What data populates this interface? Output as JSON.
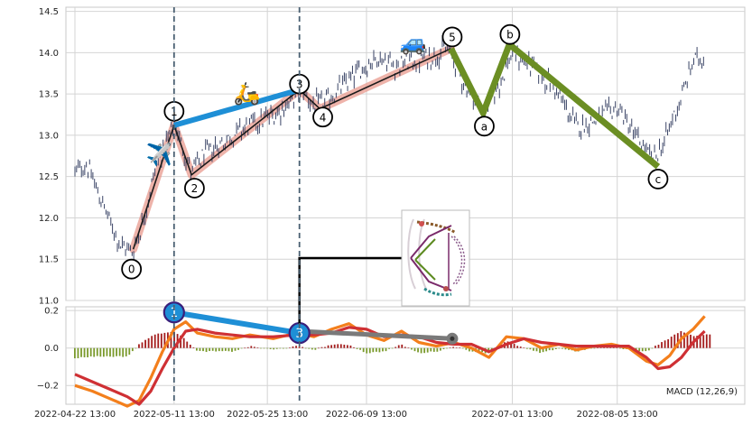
{
  "colors": {
    "grid": "#d4d4d4",
    "candle": "#3a4466",
    "impulse": "#e8998d",
    "abc": "#6b8e23",
    "divergence": "#1e8fd6",
    "macd_line": "#f37f1c",
    "signal_line": "#cf3034",
    "hist_pos": "#a31c1c",
    "hist_neg": "#7a9a2c",
    "vline": "#4a6072",
    "grey_line": "#7a7a7a"
  },
  "chart_data": [
    {
      "type": "candlestick",
      "title": "",
      "ylim": [
        11.0,
        14.55
      ],
      "yticks": [
        "11.0",
        "11.5",
        "12.0",
        "12.5",
        "13.0",
        "13.5",
        "14.0",
        "14.5"
      ],
      "xlim_days": [
        0,
        111
      ],
      "price_path": [
        {
          "d": 0,
          "v": 12.55
        },
        {
          "d": 2,
          "v": 12.65
        },
        {
          "d": 4,
          "v": 12.3
        },
        {
          "d": 6,
          "v": 11.95
        },
        {
          "d": 8,
          "v": 11.65
        },
        {
          "d": 10,
          "v": 11.6
        },
        {
          "d": 12,
          "v": 12.05
        },
        {
          "d": 14,
          "v": 12.65
        },
        {
          "d": 16,
          "v": 12.95
        },
        {
          "d": 17,
          "v": 13.13
        },
        {
          "d": 18.5,
          "v": 12.85
        },
        {
          "d": 20,
          "v": 12.55
        },
        {
          "d": 22,
          "v": 12.75
        },
        {
          "d": 25,
          "v": 12.9
        },
        {
          "d": 28,
          "v": 13.05
        },
        {
          "d": 31,
          "v": 13.15
        },
        {
          "d": 34,
          "v": 13.25
        },
        {
          "d": 37,
          "v": 13.4
        },
        {
          "d": 39,
          "v": 13.55
        },
        {
          "d": 41,
          "v": 13.35
        },
        {
          "d": 43,
          "v": 13.4
        },
        {
          "d": 46,
          "v": 13.6
        },
        {
          "d": 49,
          "v": 13.8
        },
        {
          "d": 52,
          "v": 13.95
        },
        {
          "d": 55,
          "v": 13.85
        },
        {
          "d": 58,
          "v": 13.9
        },
        {
          "d": 61,
          "v": 13.95
        },
        {
          "d": 64,
          "v": 14.05
        },
        {
          "d": 67,
          "v": 13.6
        },
        {
          "d": 70,
          "v": 13.3
        },
        {
          "d": 72,
          "v": 13.5
        },
        {
          "d": 75,
          "v": 14.0
        },
        {
          "d": 78,
          "v": 13.85
        },
        {
          "d": 82,
          "v": 13.6
        },
        {
          "d": 86,
          "v": 13.1
        },
        {
          "d": 90,
          "v": 13.2
        },
        {
          "d": 93,
          "v": 13.35
        },
        {
          "d": 96,
          "v": 13.0
        },
        {
          "d": 99,
          "v": 12.7
        },
        {
          "d": 101,
          "v": 12.9
        },
        {
          "d": 103,
          "v": 13.3
        },
        {
          "d": 104,
          "v": 13.45
        },
        {
          "d": 106,
          "v": 13.9
        },
        {
          "d": 108,
          "v": 13.95
        }
      ],
      "wave_points": [
        {
          "label": "0",
          "d": 10,
          "v": 11.62
        },
        {
          "label": "1",
          "d": 17,
          "v": 13.12
        },
        {
          "label": "2",
          "d": 20,
          "v": 12.52
        },
        {
          "label": "3",
          "d": 38.5,
          "v": 13.55
        },
        {
          "label": "4",
          "d": 42,
          "v": 13.32
        },
        {
          "label": "5",
          "d": 64.5,
          "v": 14.05
        },
        {
          "label": "a",
          "d": 70,
          "v": 13.27
        },
        {
          "label": "b",
          "d": 74.5,
          "v": 14.1
        },
        {
          "label": "c",
          "d": 100,
          "v": 12.62
        }
      ],
      "wave_markers": [
        {
          "label": "0",
          "d": 9.7,
          "v": 11.38
        },
        {
          "label": "1",
          "d": 17,
          "v": 13.29
        },
        {
          "label": "2",
          "d": 20.5,
          "v": 12.36
        },
        {
          "label": "3",
          "d": 38.5,
          "v": 13.62
        },
        {
          "label": "4",
          "d": 42.5,
          "v": 13.22
        },
        {
          "label": "5",
          "d": 64.7,
          "v": 14.19
        },
        {
          "label": "a",
          "d": 70.2,
          "v": 13.11
        },
        {
          "label": "b",
          "d": 74.6,
          "v": 14.22
        },
        {
          "label": "c",
          "d": 100,
          "v": 12.47
        }
      ],
      "divergence_price": [
        {
          "d": 17,
          "v": 13.12
        },
        {
          "d": 38.5,
          "v": 13.55
        }
      ],
      "vertical_lines_days": [
        17,
        38.5
      ],
      "icons": [
        {
          "glyph": "✈️",
          "name": "airplane-icon",
          "d": 14.5,
          "v": 12.68
        },
        {
          "glyph": "🛵",
          "name": "scooter-icon",
          "d": 29.5,
          "v": 13.42
        },
        {
          "glyph": "🚙",
          "name": "car-icon",
          "d": 58,
          "v": 14.03
        }
      ]
    },
    {
      "type": "macd",
      "title": "",
      "ylim": [
        -0.3,
        0.22
      ],
      "yticks": [
        "0.2",
        "0.0",
        "−0.2"
      ],
      "series": [
        {
          "name": "MACD (12,26,9)",
          "role": "macd",
          "values": [
            {
              "d": 0,
              "v": -0.2
            },
            {
              "d": 3,
              "v": -0.23
            },
            {
              "d": 6,
              "v": -0.27
            },
            {
              "d": 9,
              "v": -0.31
            },
            {
              "d": 11,
              "v": -0.28
            },
            {
              "d": 13,
              "v": -0.16
            },
            {
              "d": 15,
              "v": -0.02
            },
            {
              "d": 17,
              "v": 0.1
            },
            {
              "d": 19,
              "v": 0.14
            },
            {
              "d": 21,
              "v": 0.08
            },
            {
              "d": 24,
              "v": 0.06
            },
            {
              "d": 27,
              "v": 0.05
            },
            {
              "d": 30,
              "v": 0.07
            },
            {
              "d": 34,
              "v": 0.05
            },
            {
              "d": 38,
              "v": 0.08
            },
            {
              "d": 41,
              "v": 0.06
            },
            {
              "d": 44,
              "v": 0.1
            },
            {
              "d": 47,
              "v": 0.13
            },
            {
              "d": 50,
              "v": 0.07
            },
            {
              "d": 53,
              "v": 0.04
            },
            {
              "d": 56,
              "v": 0.09
            },
            {
              "d": 59,
              "v": 0.03
            },
            {
              "d": 62,
              "v": 0.01
            },
            {
              "d": 65,
              "v": 0.03
            },
            {
              "d": 68,
              "v": 0.0
            },
            {
              "d": 71,
              "v": -0.05
            },
            {
              "d": 74,
              "v": 0.06
            },
            {
              "d": 77,
              "v": 0.05
            },
            {
              "d": 80,
              "v": 0.0
            },
            {
              "d": 83,
              "v": 0.02
            },
            {
              "d": 86,
              "v": -0.01
            },
            {
              "d": 89,
              "v": 0.01
            },
            {
              "d": 92,
              "v": 0.02
            },
            {
              "d": 95,
              "v": 0.0
            },
            {
              "d": 98,
              "v": -0.07
            },
            {
              "d": 100,
              "v": -0.09
            },
            {
              "d": 102,
              "v": -0.04
            },
            {
              "d": 104,
              "v": 0.05
            },
            {
              "d": 106,
              "v": 0.1
            },
            {
              "d": 108,
              "v": 0.17
            }
          ]
        },
        {
          "name": "signal",
          "role": "signal",
          "values": [
            {
              "d": 0,
              "v": -0.14
            },
            {
              "d": 3,
              "v": -0.18
            },
            {
              "d": 6,
              "v": -0.22
            },
            {
              "d": 9,
              "v": -0.26
            },
            {
              "d": 11,
              "v": -0.3
            },
            {
              "d": 13,
              "v": -0.23
            },
            {
              "d": 15,
              "v": -0.11
            },
            {
              "d": 17,
              "v": 0.0
            },
            {
              "d": 19,
              "v": 0.09
            },
            {
              "d": 21,
              "v": 0.1
            },
            {
              "d": 24,
              "v": 0.08
            },
            {
              "d": 27,
              "v": 0.07
            },
            {
              "d": 30,
              "v": 0.06
            },
            {
              "d": 34,
              "v": 0.06
            },
            {
              "d": 38,
              "v": 0.07
            },
            {
              "d": 41,
              "v": 0.07
            },
            {
              "d": 44,
              "v": 0.08
            },
            {
              "d": 47,
              "v": 0.11
            },
            {
              "d": 50,
              "v": 0.1
            },
            {
              "d": 53,
              "v": 0.06
            },
            {
              "d": 56,
              "v": 0.07
            },
            {
              "d": 59,
              "v": 0.06
            },
            {
              "d": 62,
              "v": 0.03
            },
            {
              "d": 65,
              "v": 0.02
            },
            {
              "d": 68,
              "v": 0.02
            },
            {
              "d": 71,
              "v": -0.02
            },
            {
              "d": 74,
              "v": 0.02
            },
            {
              "d": 77,
              "v": 0.05
            },
            {
              "d": 80,
              "v": 0.03
            },
            {
              "d": 83,
              "v": 0.02
            },
            {
              "d": 86,
              "v": 0.01
            },
            {
              "d": 89,
              "v": 0.01
            },
            {
              "d": 92,
              "v": 0.01
            },
            {
              "d": 95,
              "v": 0.01
            },
            {
              "d": 98,
              "v": -0.05
            },
            {
              "d": 100,
              "v": -0.11
            },
            {
              "d": 102,
              "v": -0.1
            },
            {
              "d": 104,
              "v": -0.05
            },
            {
              "d": 106,
              "v": 0.03
            },
            {
              "d": 108,
              "v": 0.09
            }
          ]
        }
      ],
      "histogram_days": [
        0,
        109
      ],
      "divergence_markers": [
        {
          "label": "1",
          "d": 17,
          "v": 0.19
        },
        {
          "label": "3",
          "d": 38.5,
          "v": 0.08
        }
      ],
      "grey_trend": [
        {
          "d": 38.5,
          "v": 0.09
        },
        {
          "d": 64.7,
          "v": 0.05
        }
      ],
      "legend_text": "MACD (12,26,9)"
    }
  ],
  "x_axis": {
    "tick_days": [
      0,
      17,
      33,
      50,
      75,
      93
    ],
    "tick_labels": [
      "2022-04-22 13:00",
      "2022-05-11 13:00",
      "2022-05-25 13:00",
      "2022-06-09 13:00",
      "2022-07-01 13:00",
      "2022-08-05 13:00"
    ]
  },
  "inset": {
    "name": "roller-coaster-thumbnail"
  }
}
